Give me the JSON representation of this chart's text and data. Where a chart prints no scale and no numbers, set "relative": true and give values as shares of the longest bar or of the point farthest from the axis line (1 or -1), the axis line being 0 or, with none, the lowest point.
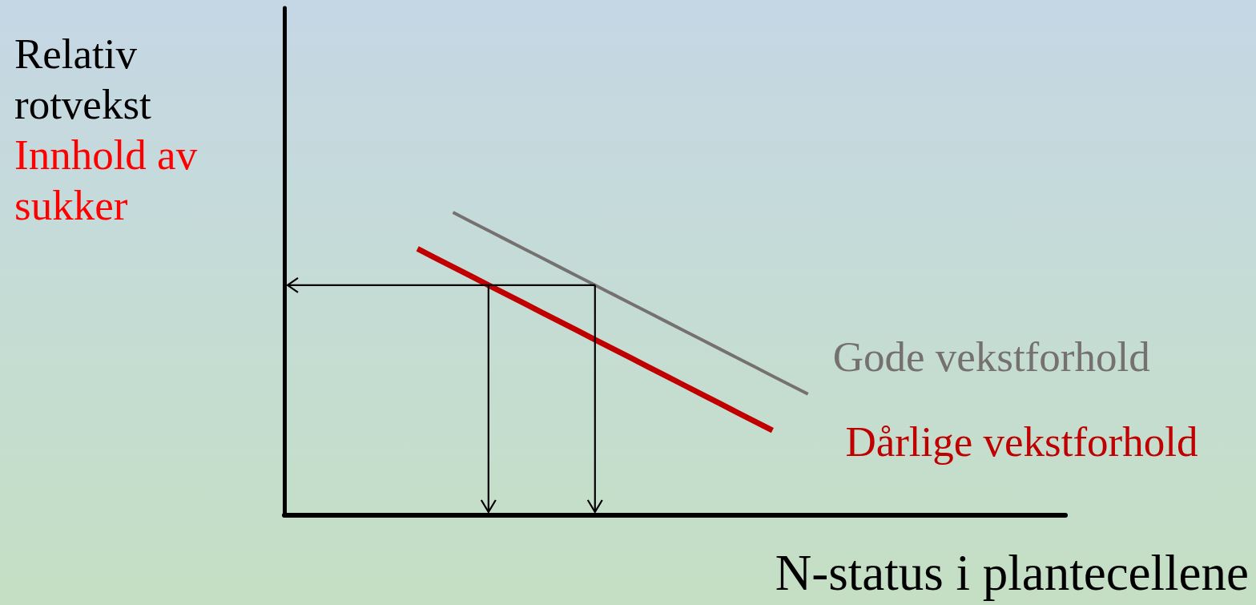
{
  "chart_data": {
    "type": "line",
    "relative": true,
    "categories": [
      null,
      null,
      null,
      null,
      null,
      null,
      null,
      null,
      null,
      null,
      null,
      null,
      null,
      null,
      null,
      null,
      null,
      null,
      null,
      null,
      null,
      null,
      null,
      null,
      null,
      null,
      null,
      null,
      null,
      null,
      null,
      null,
      null,
      null,
      null,
      null,
      null,
      null,
      null,
      null,
      null,
      null,
      null,
      null
    ],
    "series": [
      {
        "name": "Gode vekstforhold",
        "color": "#767171",
        "values": [
          null,
          null,
          null,
          null,
          null,
          null,
          null,
          null,
          null,
          1,
          0.97,
          0.94,
          0.91,
          0.88,
          0.85,
          0.82,
          0.79,
          0.76,
          0.73,
          0.7,
          0.67,
          0.64,
          0.61,
          0.58,
          0.55,
          0.52,
          0.49,
          0.46,
          0.43,
          0.4,
          null,
          null,
          null,
          null,
          null,
          null,
          null,
          null,
          null,
          null,
          null,
          null,
          null,
          null
        ]
      },
      {
        "name": "Dårlige vekstforhold",
        "color": "#c00000",
        "values": [
          null,
          null,
          null,
          null,
          null,
          null,
          null,
          0.88,
          0.85,
          0.82,
          0.79,
          0.76,
          0.73,
          0.7,
          0.67,
          0.64,
          0.61,
          0.58,
          0.55,
          0.52,
          0.49,
          0.46,
          0.43,
          0.4,
          0.37,
          0.34,
          0.31,
          0.28,
          null,
          null,
          null,
          null,
          null,
          null,
          null,
          null,
          null,
          null,
          null,
          null,
          null,
          null,
          null,
          null
        ]
      }
    ],
    "ylabel": "Relativ rotvekst",
    "xlabel": "N-status i plantecellene",
    "annotations": [
      "Innhold av sukker"
    ],
    "ref_lines": [
      {
        "axis": "y",
        "value": 0.76,
        "color": "#000000"
      }
    ],
    "grid": false,
    "marker": "none",
    "line_style": "solid"
  }
}
